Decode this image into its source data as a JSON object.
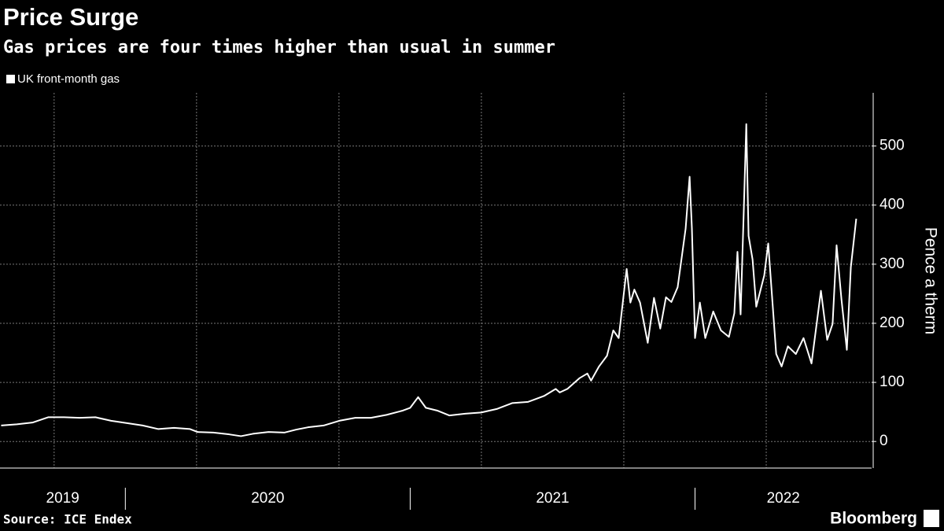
{
  "chart_data": {
    "type": "line",
    "title": "Price Surge",
    "subtitle": "Gas prices are four times higher than usual in summer",
    "y_axis_label": "Pence a therm",
    "source": "Source: ICE Endex",
    "brand": "Bloomberg",
    "x": [
      2019.564,
      2019.619,
      2019.674,
      2019.729,
      2019.785,
      2019.84,
      2019.895,
      2019.95,
      2020.006,
      2020.061,
      2020.116,
      2020.171,
      2020.227,
      2020.254,
      2020.309,
      2020.365,
      2020.406,
      2020.448,
      2020.503,
      2020.558,
      2020.599,
      2020.641,
      2020.696,
      2020.751,
      2020.807,
      2020.862,
      2020.917,
      2020.972,
      2021.0,
      2021.028,
      2021.055,
      2021.097,
      2021.138,
      2021.193,
      2021.249,
      2021.304,
      2021.359,
      2021.414,
      2021.47,
      2021.511,
      2021.525,
      2021.552,
      2021.594,
      2021.622,
      2021.635,
      2021.663,
      2021.691,
      2021.713,
      2021.732,
      2021.76,
      2021.773,
      2021.787,
      2021.807,
      2021.834,
      2021.856,
      2021.878,
      2021.898,
      2021.917,
      2021.939,
      2021.967,
      2021.981,
      2021.989,
      2022.0,
      2022.017,
      2022.036,
      2022.064,
      2022.091,
      2022.119,
      2022.138,
      2022.149,
      2022.16,
      2022.171,
      2022.18,
      2022.188,
      2022.202,
      2022.215,
      2022.243,
      2022.257,
      2022.285,
      2022.304,
      2022.326,
      2022.354,
      2022.381,
      2022.409,
      2022.442,
      2022.464,
      2022.483,
      2022.497,
      2022.514,
      2022.533,
      2022.547,
      2022.566
    ],
    "series": [
      {
        "name": "UK front-month gas",
        "color": "#ffffff",
        "values": [
          27,
          29,
          32,
          41,
          41,
          40,
          41,
          35,
          31,
          27,
          21,
          23,
          21,
          16,
          15,
          12,
          9,
          13,
          16,
          15,
          20,
          24,
          27,
          35,
          40,
          40,
          45,
          52,
          57,
          75,
          57,
          52,
          44,
          47,
          49,
          55,
          65,
          67,
          77,
          89,
          83,
          89,
          107,
          115,
          103,
          127,
          145,
          188,
          175,
          292,
          235,
          257,
          235,
          167,
          243,
          191,
          244,
          236,
          261,
          360,
          448,
          361,
          175,
          235,
          175,
          220,
          188,
          177,
          217,
          321,
          215,
          388,
          537,
          348,
          308,
          228,
          281,
          335,
          148,
          127,
          161,
          148,
          175,
          132,
          255,
          172,
          199,
          332,
          241,
          155,
          295,
          377
        ]
      }
    ],
    "xlim": [
      2019.56,
      2022.62
    ],
    "ylim": [
      -45,
      590
    ],
    "yticks": [
      0,
      100,
      200,
      300,
      400,
      500
    ],
    "xticks": [
      2020,
      2021,
      2022
    ],
    "period_labels": [
      "2019",
      "2020",
      "2021",
      "2022"
    ],
    "xgrid": [
      2019.75,
      2020.25,
      2020.75,
      2021.25,
      2021.75,
      2022.25
    ],
    "grid": true
  }
}
